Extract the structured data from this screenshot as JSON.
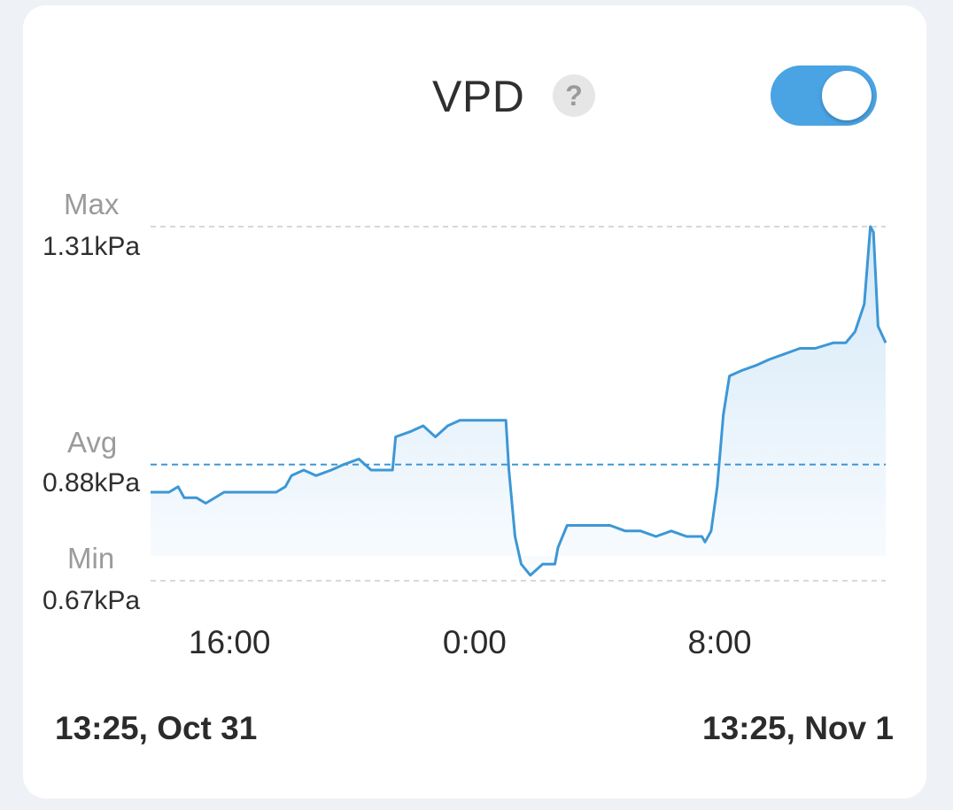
{
  "header": {
    "title": "VPD",
    "help_glyph": "?",
    "toggle_on": true
  },
  "stats": {
    "max_label": "Max",
    "max_value": "1.31kPa",
    "avg_label": "Avg",
    "avg_value": "0.88kPa",
    "min_label": "Min",
    "min_value": "0.67kPa"
  },
  "range": {
    "start": "13:25, Oct 31",
    "end": "13:25, Nov 1"
  },
  "colors": {
    "accent": "#4aa3e3",
    "line": "#3d97d6",
    "fill": "#cfe6f7"
  },
  "chart_data": {
    "type": "area",
    "ylim": [
      0.67,
      1.31
    ],
    "x_ticks": [
      {
        "hour": 2.58,
        "label": "16:00"
      },
      {
        "hour": 10.58,
        "label": "0:00"
      },
      {
        "hour": 18.58,
        "label": "8:00"
      }
    ],
    "avg": 0.88,
    "points": [
      [
        0.0,
        0.83
      ],
      [
        0.6,
        0.83
      ],
      [
        0.9,
        0.84
      ],
      [
        1.1,
        0.82
      ],
      [
        1.5,
        0.82
      ],
      [
        1.8,
        0.81
      ],
      [
        2.4,
        0.83
      ],
      [
        2.9,
        0.83
      ],
      [
        3.5,
        0.83
      ],
      [
        4.1,
        0.83
      ],
      [
        4.4,
        0.84
      ],
      [
        4.6,
        0.86
      ],
      [
        5.0,
        0.87
      ],
      [
        5.4,
        0.86
      ],
      [
        5.9,
        0.87
      ],
      [
        6.3,
        0.88
      ],
      [
        6.8,
        0.89
      ],
      [
        7.2,
        0.87
      ],
      [
        7.6,
        0.87
      ],
      [
        7.9,
        0.87
      ],
      [
        8.0,
        0.93
      ],
      [
        8.5,
        0.94
      ],
      [
        8.9,
        0.95
      ],
      [
        9.3,
        0.93
      ],
      [
        9.7,
        0.95
      ],
      [
        10.1,
        0.96
      ],
      [
        10.4,
        0.96
      ],
      [
        10.7,
        0.96
      ],
      [
        11.0,
        0.96
      ],
      [
        11.6,
        0.96
      ],
      [
        11.7,
        0.87
      ],
      [
        11.9,
        0.75
      ],
      [
        12.1,
        0.7
      ],
      [
        12.4,
        0.68
      ],
      [
        12.6,
        0.69
      ],
      [
        12.8,
        0.7
      ],
      [
        13.2,
        0.7
      ],
      [
        13.3,
        0.73
      ],
      [
        13.6,
        0.77
      ],
      [
        14.0,
        0.77
      ],
      [
        14.5,
        0.77
      ],
      [
        15.0,
        0.77
      ],
      [
        15.5,
        0.76
      ],
      [
        16.0,
        0.76
      ],
      [
        16.5,
        0.75
      ],
      [
        17.0,
        0.76
      ],
      [
        17.5,
        0.75
      ],
      [
        18.0,
        0.75
      ],
      [
        18.1,
        0.74
      ],
      [
        18.3,
        0.76
      ],
      [
        18.5,
        0.84
      ],
      [
        18.7,
        0.97
      ],
      [
        18.9,
        1.04
      ],
      [
        19.3,
        1.05
      ],
      [
        19.8,
        1.06
      ],
      [
        20.2,
        1.07
      ],
      [
        20.7,
        1.08
      ],
      [
        21.2,
        1.09
      ],
      [
        21.7,
        1.09
      ],
      [
        22.3,
        1.1
      ],
      [
        22.7,
        1.1
      ],
      [
        23.0,
        1.12
      ],
      [
        23.3,
        1.17
      ],
      [
        23.5,
        1.31
      ],
      [
        23.6,
        1.3
      ],
      [
        23.75,
        1.13
      ],
      [
        24.0,
        1.1
      ]
    ]
  }
}
